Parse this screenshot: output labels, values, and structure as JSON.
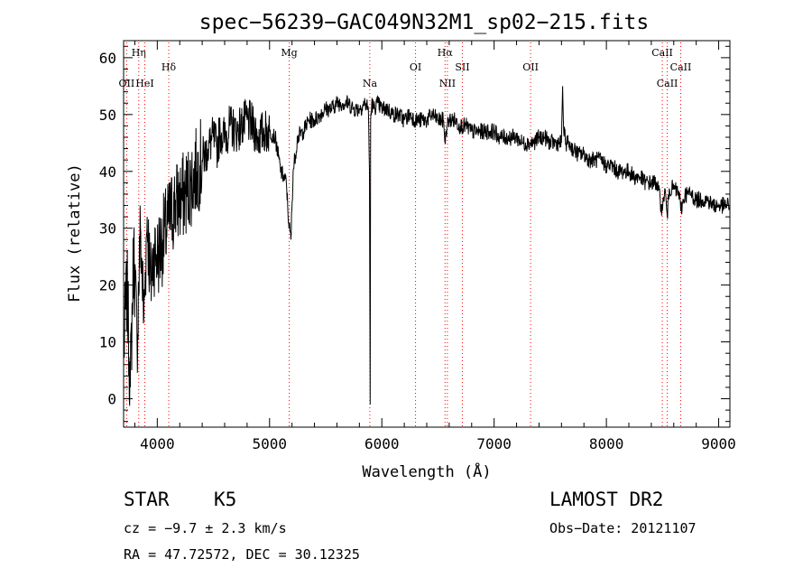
{
  "chart_data": {
    "type": "line",
    "title": "spec−56239−GAC049N32M1_sp02−215.fits",
    "xlabel": "Wavelength (Å)",
    "ylabel": "Flux (relative)",
    "xlim": [
      3700,
      9100
    ],
    "ylim": [
      -5,
      63
    ],
    "x_ticks": [
      4000,
      5000,
      6000,
      7000,
      8000,
      9000
    ],
    "y_ticks": [
      0,
      10,
      20,
      30,
      40,
      50,
      60
    ],
    "grid": false,
    "series": [
      {
        "x": [
          3700,
          3730,
          3760,
          3790,
          3820,
          3850,
          3880,
          3910,
          3940,
          3970,
          4000,
          4050,
          4100,
          4150,
          4200,
          4250,
          4300,
          4350,
          4400,
          4450,
          4500,
          4530,
          4560,
          4600,
          4650,
          4700,
          4750,
          4800,
          4850,
          4900,
          4950,
          5000,
          5050,
          5100,
          5150,
          5170,
          5190,
          5210,
          5250,
          5300,
          5350,
          5400,
          5450,
          5500,
          5550,
          5600,
          5650,
          5700,
          5750,
          5800,
          5850,
          5880,
          5890,
          5896,
          5900,
          5910,
          5930,
          5960,
          6000,
          6050,
          6100,
          6150,
          6200,
          6250,
          6300,
          6350,
          6400,
          6450,
          6500,
          6550,
          6563,
          6580,
          6600,
          6650,
          6700,
          6750,
          6800,
          6850,
          6900,
          6950,
          7000,
          7050,
          7100,
          7150,
          7200,
          7250,
          7300,
          7350,
          7400,
          7450,
          7500,
          7550,
          7580,
          7600,
          7610,
          7620,
          7640,
          7660,
          7700,
          7750,
          7800,
          7850,
          7900,
          7950,
          8000,
          8050,
          8100,
          8150,
          8200,
          8250,
          8300,
          8350,
          8400,
          8450,
          8498,
          8520,
          8542,
          8560,
          8600,
          8650,
          8662,
          8700,
          8750,
          8800,
          8850,
          8900,
          8950,
          9000,
          9050,
          9100
        ],
        "y": [
          8,
          20,
          2,
          27,
          10,
          30,
          14,
          32,
          20,
          26,
          25,
          28,
          31,
          34,
          35,
          36,
          38,
          40,
          42,
          44,
          46,
          44,
          47,
          46,
          48,
          47,
          48,
          49,
          48,
          46,
          47,
          47,
          46,
          40,
          38,
          31,
          28,
          40,
          46,
          47,
          49,
          49,
          50,
          51,
          51,
          52,
          52,
          52,
          51,
          51,
          52,
          51,
          40,
          -1,
          49,
          52,
          51,
          52,
          51,
          51,
          50,
          50,
          49,
          50,
          49,
          49,
          49,
          50,
          49,
          49,
          45,
          48,
          49,
          49,
          48,
          48,
          47,
          47,
          47,
          47,
          47,
          46,
          46,
          46,
          46,
          45,
          45,
          45,
          46,
          46,
          45,
          45,
          45,
          45,
          55,
          47,
          45,
          45,
          44,
          43,
          43,
          42,
          42,
          42,
          41,
          41,
          40,
          40,
          40,
          39,
          39,
          38,
          38,
          38,
          33,
          37,
          32,
          37,
          37,
          36,
          33,
          36,
          36,
          35,
          35,
          35,
          34,
          34,
          34,
          34
        ]
      }
    ],
    "line_markers": [
      {
        "label": "Hη",
        "wavelength": 3835,
        "row": 1
      },
      {
        "label": "OII",
        "wavelength": 3727,
        "row": 3
      },
      {
        "label": "HeI",
        "wavelength": 3889,
        "row": 3
      },
      {
        "label": "Hδ",
        "wavelength": 4102,
        "row": 2
      },
      {
        "label": "Mg",
        "wavelength": 5175,
        "row": 1
      },
      {
        "label": "Na",
        "wavelength": 5893,
        "row": 3
      },
      {
        "label": "OI",
        "wavelength": 6300,
        "row": 2
      },
      {
        "label": "Hα",
        "wavelength": 6563,
        "row": 1
      },
      {
        "label": "NII",
        "wavelength": 6584,
        "row": 3
      },
      {
        "label": "SII",
        "wavelength": 6717,
        "row": 2
      },
      {
        "label": "OII",
        "wavelength": 7325,
        "row": 2
      },
      {
        "label": "CaII",
        "wavelength": 8498,
        "row": 1
      },
      {
        "label": "CaII",
        "wavelength": 8542,
        "row": 3
      },
      {
        "label": "CaII",
        "wavelength": 8662,
        "row": 2
      }
    ]
  },
  "info": {
    "object_class": "STAR",
    "subclass": "K5",
    "survey": "LAMOST DR2",
    "velocity": "cz = −9.7 ± 2.3 km/s",
    "obs_date": "Obs−Date: 20121107",
    "coords": "RA =  47.72572, DEC =  30.12325"
  },
  "colors": {
    "spectrum": "#000000",
    "marker_line": "#ff0000",
    "axis": "#000000"
  }
}
